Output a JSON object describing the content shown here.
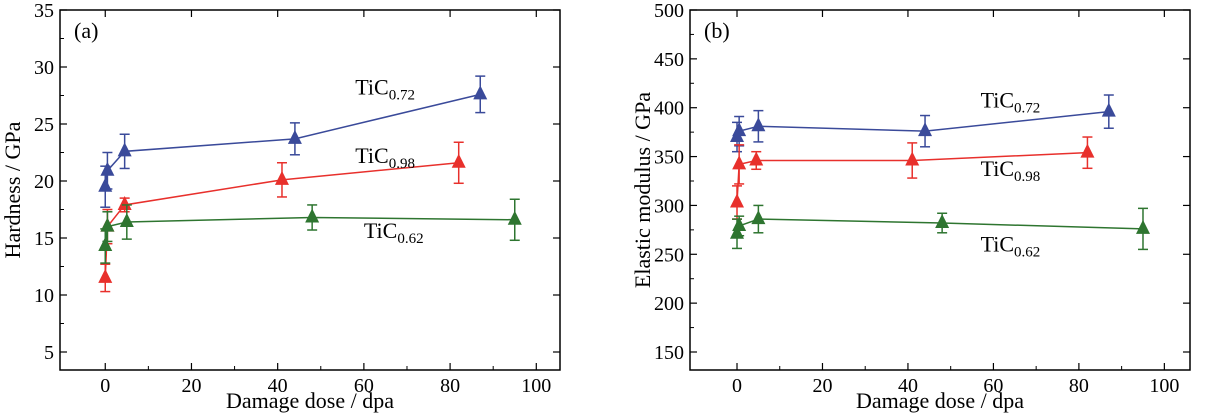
{
  "chart_data": [
    {
      "type": "scatter",
      "panel_label": "(a)",
      "xlabel": "Damage dose / dpa",
      "ylabel": "Hardness / GPa",
      "xlim": [
        -10.5,
        105.5
      ],
      "ylim": [
        5,
        35
      ],
      "xticks": [
        0,
        20,
        40,
        60,
        80,
        100
      ],
      "yticks": [
        5,
        10,
        15,
        20,
        25,
        30,
        35
      ],
      "grid": false,
      "series": [
        {
          "name": "TiC",
          "sub": "0.72",
          "color": "#3a4a9a",
          "x": [
            0,
            0.5,
            4.5,
            44,
            87
          ],
          "y": [
            19.5,
            20.9,
            22.6,
            23.7,
            27.6
          ],
          "err": [
            1.8,
            1.6,
            1.5,
            1.4,
            1.6
          ]
        },
        {
          "name": "TiC",
          "sub": "0.98",
          "color": "#e8302c",
          "x": [
            0,
            0.5,
            4.5,
            41,
            82
          ],
          "y": [
            11.5,
            16.0,
            17.9,
            20.1,
            21.6
          ],
          "err": [
            1.2,
            1.5,
            0.6,
            1.5,
            1.8
          ]
        },
        {
          "name": "TiC",
          "sub": "0.62",
          "color": "#2e7530",
          "x": [
            0,
            0.5,
            5,
            48,
            95
          ],
          "y": [
            14.3,
            16.0,
            16.4,
            16.8,
            16.6
          ],
          "err": [
            1.5,
            1.3,
            1.5,
            1.1,
            1.8
          ]
        }
      ],
      "labels": [
        {
          "series": 0,
          "at": [
            58,
            27.6
          ]
        },
        {
          "series": 1,
          "at": [
            58,
            21.6
          ]
        },
        {
          "series": 2,
          "at": [
            60,
            15.0
          ]
        }
      ]
    },
    {
      "type": "scatter",
      "panel_label": "(b)",
      "xlabel": "Damage dose / dpa",
      "ylabel": "Elastic modulus / GPa",
      "xlim": [
        -11,
        106
      ],
      "ylim": [
        150,
        500
      ],
      "xticks": [
        0,
        20,
        40,
        60,
        80,
        100
      ],
      "yticks": [
        150,
        200,
        250,
        300,
        350,
        400,
        450,
        500
      ],
      "grid": false,
      "series": [
        {
          "name": "TiC",
          "sub": "0.72",
          "color": "#3a4a9a",
          "x": [
            0,
            0.5,
            5,
            44,
            87
          ],
          "y": [
            370,
            376,
            381,
            376,
            396
          ],
          "err": [
            15,
            15,
            16,
            16,
            17
          ]
        },
        {
          "name": "TiC",
          "sub": "0.98",
          "color": "#e8302c",
          "x": [
            0,
            0.5,
            4.5,
            41,
            82
          ],
          "y": [
            303,
            342,
            346,
            346,
            354
          ],
          "err": [
            17,
            20,
            9,
            18,
            16
          ]
        },
        {
          "name": "TiC",
          "sub": "0.62",
          "color": "#2e7530",
          "x": [
            0,
            0.5,
            5,
            48,
            95
          ],
          "y": [
            271,
            279,
            286,
            282,
            276
          ],
          "err": [
            15,
            10,
            14,
            10,
            21
          ]
        }
      ],
      "labels": [
        {
          "series": 0,
          "at": [
            57,
            400
          ]
        },
        {
          "series": 1,
          "at": [
            57,
            330
          ]
        },
        {
          "series": 2,
          "at": [
            57,
            253
          ]
        }
      ]
    }
  ]
}
